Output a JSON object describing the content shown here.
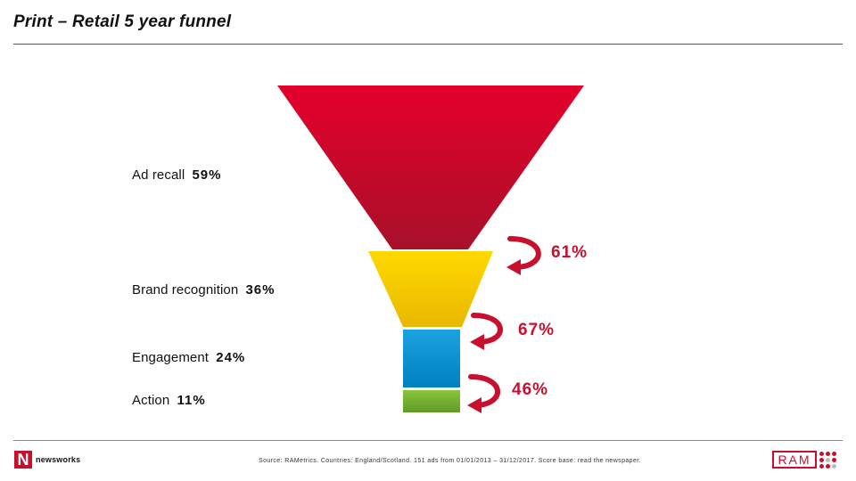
{
  "header": {
    "title": "Print – Retail 5 year funnel"
  },
  "funnel": {
    "stages": [
      {
        "label": "Ad recall",
        "value": "59%",
        "color": "#e0002e"
      },
      {
        "label": "Brand recognition",
        "value": "36%",
        "color": "#ffd400"
      },
      {
        "label": "Engagement",
        "value": "24%",
        "color": "#0096d6"
      },
      {
        "label": "Action",
        "value": "11%",
        "color": "#7ab532"
      }
    ],
    "conversions": [
      "61%",
      "67%",
      "46%"
    ],
    "arrow_color": "#c8102e"
  },
  "footer": {
    "source": "Source: RAMetrics. Countries: England/Scotland. 151 ads from 01/01/2013 – 31/12/2017. Score base: read the newspaper.",
    "left_logo": {
      "mark": "N",
      "text": "newsworks"
    },
    "right_logo": {
      "text": "RAM"
    }
  }
}
